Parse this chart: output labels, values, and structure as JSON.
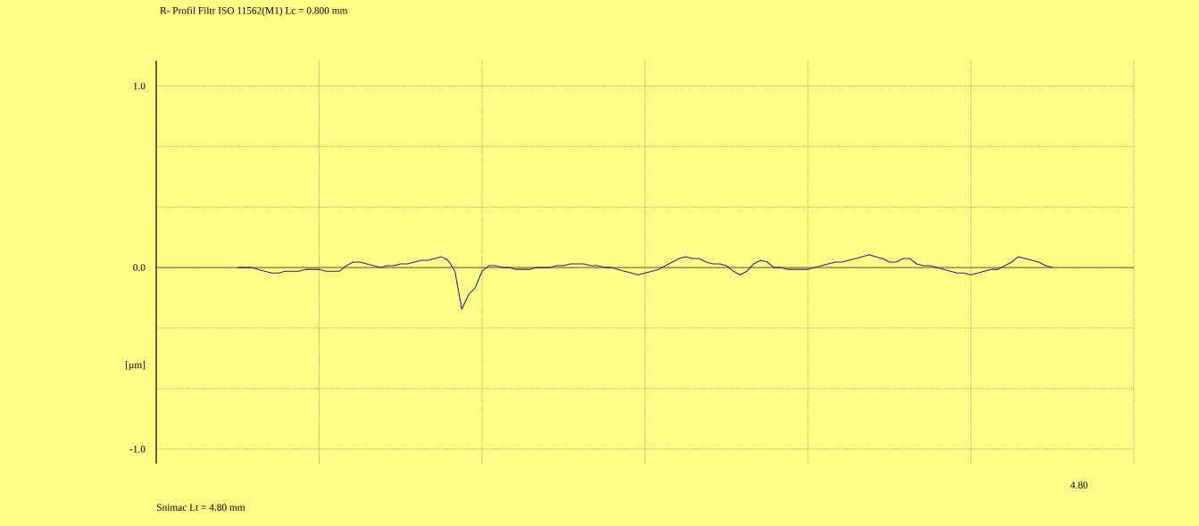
{
  "chart_data": {
    "type": "line",
    "title": "R- Profil Filtr ISO 11562(M1) Lc = 0.800 mm",
    "ylabel": "[µm]",
    "annotations": [
      "Snimac Lt = 4.80 mm",
      "4.80"
    ],
    "categories": [
      null,
      null,
      null,
      null,
      null,
      null,
      null,
      null,
      null,
      null,
      null,
      null,
      null,
      null,
      null,
      null,
      null,
      null,
      null,
      null,
      null,
      null,
      null,
      null,
      null,
      null,
      null,
      null,
      null,
      null,
      null,
      null,
      null,
      null,
      null,
      null,
      null,
      null,
      null,
      null,
      null,
      null,
      null,
      null,
      null,
      null,
      null,
      null,
      null,
      null,
      null,
      null,
      null,
      null,
      null,
      null,
      null,
      null,
      null,
      null,
      null,
      null,
      null,
      null,
      null,
      null,
      null,
      null,
      null,
      null,
      null,
      null,
      null,
      null,
      null,
      null,
      null,
      null,
      null,
      null,
      null,
      null,
      null,
      null,
      null,
      null,
      null,
      null,
      null,
      null,
      null,
      null,
      null,
      null,
      null,
      null,
      null,
      null,
      null,
      null,
      null,
      null,
      null,
      null,
      null,
      null,
      null,
      null,
      null,
      null,
      null,
      null,
      null,
      null,
      null,
      null,
      null,
      null,
      null,
      null,
      null
    ],
    "series": [
      {
        "color": "#22228c",
        "values": [
          0,
          0,
          0,
          -0.01,
          -0.02,
          -0.03,
          -0.03,
          -0.02,
          -0.02,
          -0.02,
          -0.01,
          -0.01,
          -0.01,
          -0.02,
          -0.02,
          -0.02,
          0.01,
          0.03,
          0.03,
          0.02,
          0.01,
          0,
          0.01,
          0.01,
          0.02,
          0.02,
          0.03,
          0.04,
          0.04,
          0.05,
          0.06,
          0.04,
          -0.02,
          -0.23,
          -0.15,
          -0.11,
          -0.02,
          0.01,
          0.01,
          0,
          0,
          -0.01,
          -0.01,
          -0.01,
          0,
          0,
          0,
          0.01,
          0.01,
          0.02,
          0.02,
          0.02,
          0.01,
          0.01,
          0,
          0,
          -0.01,
          -0.02,
          -0.03,
          -0.04,
          -0.03,
          -0.02,
          -0.01,
          0.01,
          0.03,
          0.05,
          0.06,
          0.05,
          0.05,
          0.03,
          0.02,
          0.02,
          0.01,
          -0.02,
          -0.04,
          -0.02,
          0.02,
          0.04,
          0.03,
          0,
          0,
          -0.01,
          -0.01,
          -0.01,
          -0.01,
          0,
          0.01,
          0.02,
          0.03,
          0.03,
          0.04,
          0.05,
          0.06,
          0.07,
          0.06,
          0.05,
          0.03,
          0.03,
          0.05,
          0.05,
          0.02,
          0.01,
          0.01,
          0,
          -0.01,
          -0.02,
          -0.03,
          -0.03,
          -0.04,
          -0.03,
          -0.02,
          -0.01,
          -0.01,
          0.01,
          0.03,
          0.06,
          0.05,
          0.04,
          0.03,
          0.01,
          0
        ]
      }
    ],
    "ylim": [
      -1.08,
      1.14
    ],
    "yticks": [
      {
        "value": -1,
        "label": "-1.0"
      },
      {
        "value": -0.667,
        "label": null
      },
      {
        "value": -0.333,
        "label": null
      },
      {
        "value": 0,
        "label": "0.0"
      },
      {
        "value": 0.333,
        "label": null
      },
      {
        "value": 0.667,
        "label": null
      },
      {
        "value": 1,
        "label": "1.0"
      }
    ],
    "grid": true,
    "line_style": "solid"
  }
}
